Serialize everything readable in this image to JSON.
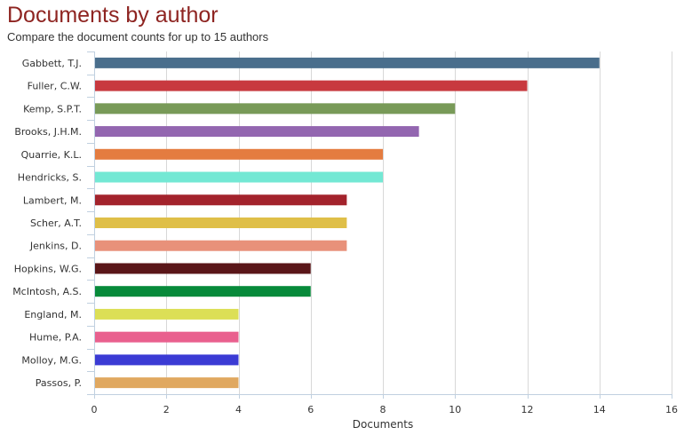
{
  "header": {
    "title": "Documents by author",
    "subtitle": "Compare the document counts for up to 15 authors"
  },
  "colors": {
    "title": "#8e2421",
    "grid": "#d8d8d8",
    "axis": "#c0d0e0"
  },
  "chart_data": {
    "type": "bar",
    "orientation": "horizontal",
    "title": "Documents by author",
    "subtitle": "Compare the document counts for up to 15 authors",
    "xlabel": "Documents",
    "ylabel": "",
    "xlim": [
      0,
      16
    ],
    "xticks": [
      0,
      2,
      4,
      6,
      8,
      10,
      12,
      14,
      16
    ],
    "grid": true,
    "legend": "none",
    "categories": [
      "Gabbett, T.J.",
      "Fuller, C.W.",
      "Kemp, S.P.T.",
      "Brooks, J.H.M.",
      "Quarrie, K.L.",
      "Hendricks, S.",
      "Lambert, M.",
      "Scher, A.T.",
      "Jenkins, D.",
      "Hopkins, W.G.",
      "McIntosh, A.S.",
      "England, M.",
      "Hume, P.A.",
      "Molloy, M.G.",
      "Passos, P."
    ],
    "values": [
      14,
      12,
      10,
      9,
      8,
      8,
      7,
      7,
      7,
      6,
      6,
      4,
      4,
      4,
      4
    ],
    "bar_colors": [
      "#4a6e8c",
      "#c8393f",
      "#789a58",
      "#9366b0",
      "#e47c40",
      "#73e8d4",
      "#a3232c",
      "#dfbf48",
      "#e8917a",
      "#5a1619",
      "#078a3a",
      "#dcdf56",
      "#e9608e",
      "#3b3bd4",
      "#e0a860"
    ]
  }
}
